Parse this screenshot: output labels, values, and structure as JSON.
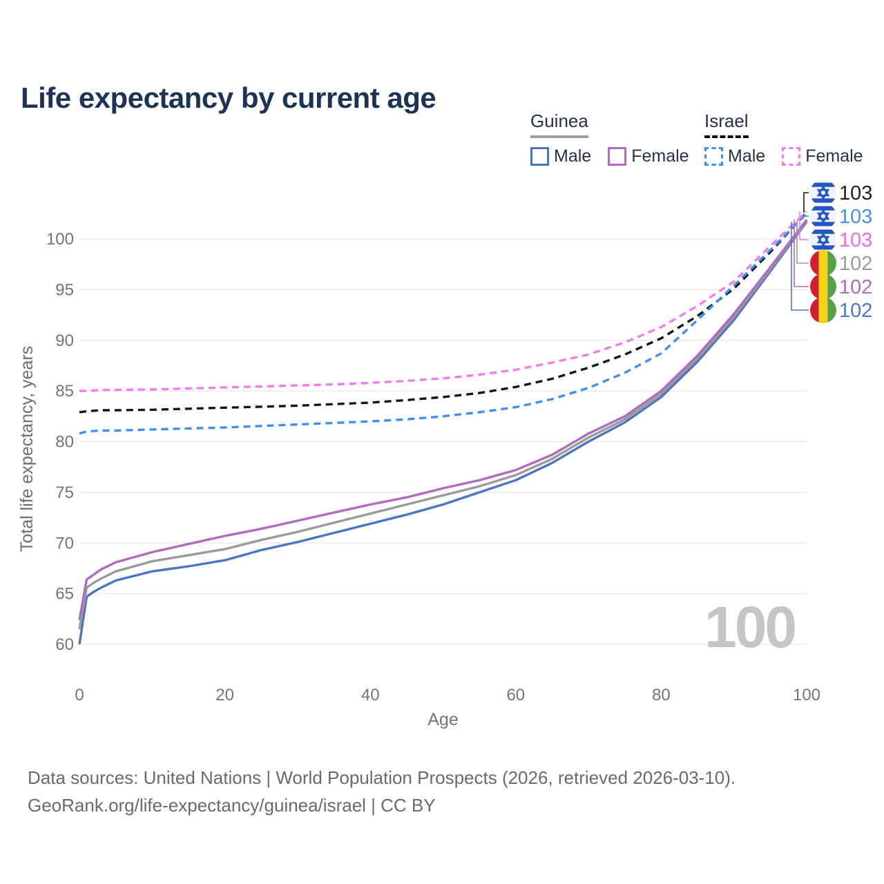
{
  "title": "Life expectancy by current age",
  "legend": {
    "groups": [
      {
        "title": "Guinea",
        "line_style": "solid",
        "underline_color": "#9e9e9e",
        "items": [
          {
            "label": "Male",
            "color": "#4a74c6",
            "dashed": false
          },
          {
            "label": "Female",
            "color": "#b16bbe",
            "dashed": false
          }
        ]
      },
      {
        "title": "Israel",
        "line_style": "dashed",
        "underline_color": "#111111",
        "items": [
          {
            "label": "Male",
            "color": "#3e8ef7",
            "dashed": true
          },
          {
            "label": "Female",
            "color": "#f878ee",
            "dashed": true
          }
        ]
      }
    ]
  },
  "chart_data": {
    "type": "line",
    "title": "Life expectancy by current age",
    "xlabel": "Age",
    "ylabel": "Total life expectancy, years",
    "x_ticks": [
      0,
      20,
      40,
      60,
      80,
      100
    ],
    "y_ticks": [
      60,
      65,
      70,
      75,
      80,
      85,
      90,
      95,
      100
    ],
    "xlim": [
      0,
      100
    ],
    "ylim": [
      57,
      104
    ],
    "grid": "horizontal",
    "x": [
      0,
      1,
      2,
      3,
      5,
      10,
      15,
      20,
      25,
      30,
      35,
      40,
      45,
      50,
      55,
      60,
      65,
      70,
      75,
      80,
      85,
      90,
      95,
      100
    ],
    "series": [
      {
        "name": "Guinea Male",
        "country": "Guinea",
        "sex": "Male",
        "color": "#4a74c6",
        "dashed": false,
        "values": [
          60.0,
          64.7,
          65.2,
          65.6,
          66.3,
          67.2,
          67.7,
          68.3,
          69.3,
          70.1,
          71.0,
          71.9,
          72.8,
          73.8,
          75.0,
          76.2,
          77.9,
          80.0,
          81.9,
          84.4,
          87.9,
          92.0,
          96.8,
          101.7
        ]
      },
      {
        "name": "Guinea Both sexes",
        "country": "Guinea",
        "sex": "Both",
        "color": "#9a9a9a",
        "dashed": false,
        "values": [
          61.5,
          65.6,
          66.1,
          66.5,
          67.2,
          68.2,
          68.8,
          69.4,
          70.3,
          71.1,
          72.0,
          72.9,
          73.8,
          74.7,
          75.6,
          76.7,
          78.3,
          80.4,
          82.2,
          84.7,
          88.2,
          92.3,
          97.0,
          101.8
        ]
      },
      {
        "name": "Guinea Female",
        "country": "Guinea",
        "sex": "Female",
        "color": "#b16bbe",
        "dashed": false,
        "values": [
          62.4,
          66.4,
          66.9,
          67.4,
          68.1,
          69.1,
          69.9,
          70.7,
          71.4,
          72.2,
          73.0,
          73.8,
          74.5,
          75.4,
          76.2,
          77.2,
          78.7,
          80.8,
          82.5,
          85.0,
          88.5,
          92.6,
          97.2,
          101.9
        ]
      },
      {
        "name": "Israel Both sexes",
        "country": "Israel",
        "sex": "Both",
        "color": "#141414",
        "dashed": true,
        "values": [
          82.9,
          83.0,
          83.05,
          83.1,
          83.1,
          83.15,
          83.25,
          83.35,
          83.45,
          83.55,
          83.7,
          83.85,
          84.1,
          84.4,
          84.8,
          85.4,
          86.2,
          87.3,
          88.6,
          90.2,
          92.4,
          95.1,
          98.7,
          102.6
        ]
      },
      {
        "name": "Israel Male",
        "country": "Israel",
        "sex": "Male",
        "color": "#3e8ef7",
        "dashed": true,
        "values": [
          80.8,
          81.0,
          81.05,
          81.1,
          81.1,
          81.2,
          81.3,
          81.4,
          81.55,
          81.7,
          81.85,
          82.0,
          82.2,
          82.5,
          82.9,
          83.4,
          84.2,
          85.3,
          86.8,
          88.7,
          92.0,
          95.4,
          98.9,
          102.5
        ]
      },
      {
        "name": "Israel Female",
        "country": "Israel",
        "sex": "Female",
        "color": "#f878ee",
        "dashed": true,
        "values": [
          85.0,
          85.0,
          85.05,
          85.1,
          85.1,
          85.15,
          85.25,
          85.35,
          85.45,
          85.55,
          85.65,
          85.8,
          86.0,
          86.25,
          86.6,
          87.1,
          87.8,
          88.6,
          89.8,
          91.3,
          93.4,
          95.8,
          99.3,
          102.7
        ]
      }
    ],
    "end_labels": [
      {
        "value": "103",
        "color": "#212121",
        "flag": "israel",
        "series": "Israel Both sexes"
      },
      {
        "value": "103",
        "color": "#4a90e8",
        "flag": "israel",
        "series": "Israel Male"
      },
      {
        "value": "103",
        "color": "#f966ea",
        "flag": "israel",
        "series": "Israel Female"
      },
      {
        "value": "102",
        "color": "#9b9b9b",
        "flag": "guinea",
        "series": "Guinea Both sexes"
      },
      {
        "value": "102",
        "color": "#b06cb8",
        "flag": "guinea",
        "series": "Guinea Female"
      },
      {
        "value": "102",
        "color": "#4c78c9",
        "flag": "guinea",
        "series": "Guinea Male"
      }
    ]
  },
  "watermark": "100",
  "footer": {
    "line1": "Data sources: United Nations | World Population Prospects (2026, retrieved 2026-03-10).",
    "line2": "GeoRank.org/life-expectancy/guinea/israel | CC BY"
  }
}
